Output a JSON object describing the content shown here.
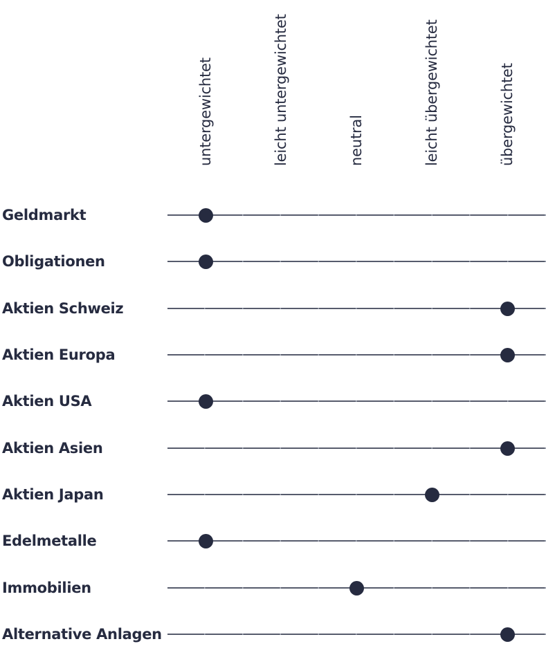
{
  "chart_data": {
    "type": "scatter",
    "subtype": "dot-positioning-matrix",
    "title": "",
    "scale": [
      "untergewichtet",
      "leicht untergewichtet",
      "neutral",
      "leicht übergewichtet",
      "übergewichtet"
    ],
    "scale_range": [
      1,
      5
    ],
    "rows": [
      {
        "label": "Geldmarkt",
        "position": "untergewichtet",
        "position_index": 1
      },
      {
        "label": "Obligationen",
        "position": "untergewichtet",
        "position_index": 1
      },
      {
        "label": "Aktien Schweiz",
        "position": "übergewichtet",
        "position_index": 5
      },
      {
        "label": "Aktien Europa",
        "position": "übergewichtet",
        "position_index": 5
      },
      {
        "label": "Aktien USA",
        "position": "untergewichtet",
        "position_index": 1
      },
      {
        "label": "Aktien Asien",
        "position": "übergewichtet",
        "position_index": 5
      },
      {
        "label": "Aktien Japan",
        "position": "leicht übergewichtet",
        "position_index": 4
      },
      {
        "label": "Edelmetalle",
        "position": "untergewichtet",
        "position_index": 1
      },
      {
        "label": "Immobilien",
        "position": "neutral",
        "position_index": 3
      },
      {
        "label": "Alternative Anlagen",
        "position": "übergewichtet",
        "position_index": 5
      }
    ],
    "colors": {
      "text": "#262b40",
      "dot": "#262b40",
      "track": "#565b6c"
    },
    "legend": "none",
    "grid": "off"
  }
}
